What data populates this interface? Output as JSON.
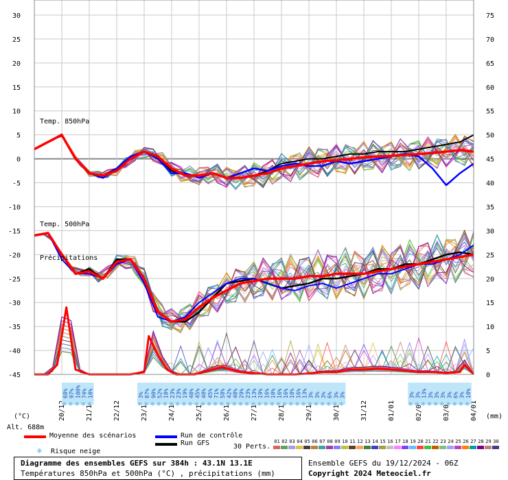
{
  "chart_data": {
    "type": "line",
    "title": "Diagramme des ensembles GEFS sur 384h : 43.1N 13.1E",
    "subtitle": "Températures 850hPa et 500hPa (°C) , précipitations (mm)",
    "run_info": "Ensemble GEFS du 19/12/2024 - 06Z",
    "copyright": "Copyright 2024 Meteociel.fr",
    "altitude": "Alt. 688m",
    "left_unit": "(°C)",
    "right_unit": "(mm)",
    "left_ticks": [
      30,
      25,
      20,
      15,
      10,
      5,
      0,
      -5,
      -10,
      -15,
      -20,
      -25,
      -30,
      -35,
      -40,
      -45
    ],
    "right_ticks": [
      75,
      70,
      65,
      60,
      55,
      50,
      45,
      40,
      35,
      30,
      25,
      20,
      15,
      10,
      5,
      0
    ],
    "ylim_temp": [
      -45,
      30
    ],
    "ylim_precip": [
      0,
      75
    ],
    "x_dates": [
      "20/12",
      "21/12",
      "22/12",
      "23/12",
      "24/12",
      "25/12",
      "26/12",
      "27/12",
      "28/12",
      "29/12",
      "30/12",
      "31/12",
      "01/01",
      "02/01",
      "03/01",
      "04/01"
    ],
    "panel_labels": {
      "t850": "Temp. 850hPa",
      "t500": "Temp. 500hPa",
      "precip": "Précipitations"
    },
    "snow_risk": [
      "68%",
      "97%",
      "100%",
      "74%",
      "10%",
      "",
      "",
      "",
      "",
      "",
      "",
      "",
      "3%",
      "87%",
      "90%",
      "52%",
      "10%",
      "23%",
      "23%",
      "19%",
      "48%",
      "45%",
      "48%",
      "45%",
      "71%",
      "58%",
      "42%",
      "48%",
      "29%",
      "23%",
      "13%",
      "19%",
      "16%",
      "10%",
      "16%",
      "16%",
      "10%",
      "16%",
      "13%",
      "3%",
      "3%",
      "3%",
      "6%",
      "3%",
      "3%",
      "",
      "",
      "",
      "",
      "",
      "",
      "",
      "",
      "",
      "",
      "3%",
      "3%",
      "13%",
      "3%",
      "3%",
      "3%",
      "3%",
      "6%",
      "3%",
      "10%"
    ],
    "t850_mean": [
      [
        0,
        2
      ],
      [
        3,
        3.5
      ],
      [
        6,
        5
      ],
      [
        9,
        0
      ],
      [
        12,
        -3
      ],
      [
        15,
        -3.5
      ],
      [
        18,
        -2.5
      ],
      [
        21,
        0
      ],
      [
        24,
        1.5
      ],
      [
        27,
        0.5
      ],
      [
        30,
        -2
      ],
      [
        33,
        -3.5
      ],
      [
        36,
        -3.5
      ],
      [
        39,
        -3
      ],
      [
        42,
        -4
      ],
      [
        45,
        -4
      ],
      [
        48,
        -3.5
      ],
      [
        51,
        -3
      ],
      [
        54,
        -2
      ],
      [
        57,
        -1.5
      ],
      [
        60,
        -1
      ],
      [
        63,
        -0.5
      ],
      [
        66,
        -0.3
      ],
      [
        69,
        0
      ],
      [
        72,
        0.3
      ],
      [
        75,
        0.5
      ],
      [
        78,
        0.6
      ],
      [
        81,
        0.8
      ],
      [
        84,
        1
      ],
      [
        87,
        1.2
      ],
      [
        90,
        1.5
      ],
      [
        93,
        1.8
      ],
      [
        96,
        1.5
      ]
    ],
    "t850_control": [
      [
        0,
        2
      ],
      [
        3,
        3.5
      ],
      [
        6,
        5
      ],
      [
        9,
        0
      ],
      [
        12,
        -3
      ],
      [
        15,
        -4
      ],
      [
        18,
        -2
      ],
      [
        21,
        0.5
      ],
      [
        24,
        1.5
      ],
      [
        27,
        0
      ],
      [
        30,
        -3
      ],
      [
        33,
        -3
      ],
      [
        36,
        -4
      ],
      [
        39,
        -3
      ],
      [
        42,
        -4
      ],
      [
        45,
        -3
      ],
      [
        48,
        -2
      ],
      [
        51,
        -2.5
      ],
      [
        54,
        -1.5
      ],
      [
        57,
        -1
      ],
      [
        60,
        -1.5
      ],
      [
        63,
        -1.5
      ],
      [
        66,
        -0.5
      ],
      [
        69,
        -1
      ],
      [
        72,
        -0.5
      ],
      [
        75,
        0
      ],
      [
        78,
        0.5
      ],
      [
        81,
        1
      ],
      [
        84,
        0.5
      ],
      [
        87,
        -2
      ],
      [
        90,
        -5.5
      ],
      [
        93,
        -3
      ],
      [
        96,
        -1
      ]
    ],
    "t850_gfs": [
      [
        0,
        2
      ],
      [
        3,
        3.5
      ],
      [
        6,
        5
      ],
      [
        9,
        0
      ],
      [
        12,
        -3
      ],
      [
        15,
        -3.5
      ],
      [
        18,
        -2
      ],
      [
        21,
        0
      ],
      [
        24,
        1.5
      ],
      [
        27,
        0.5
      ],
      [
        30,
        -2.5
      ],
      [
        33,
        -3.5
      ],
      [
        36,
        -3.5
      ],
      [
        39,
        -3
      ],
      [
        42,
        -4
      ],
      [
        45,
        -4
      ],
      [
        48,
        -3.5
      ],
      [
        51,
        -2.5
      ],
      [
        54,
        -1
      ],
      [
        57,
        -0.5
      ],
      [
        60,
        0
      ],
      [
        63,
        0
      ],
      [
        66,
        0.5
      ],
      [
        69,
        1
      ],
      [
        72,
        1
      ],
      [
        75,
        1.5
      ],
      [
        78,
        1.5
      ],
      [
        81,
        1.5
      ],
      [
        84,
        2
      ],
      [
        87,
        2.5
      ],
      [
        90,
        3
      ],
      [
        93,
        3.5
      ],
      [
        96,
        5
      ]
    ],
    "t500_mean": [
      [
        0,
        -16
      ],
      [
        3,
        -15.5
      ],
      [
        6,
        -20
      ],
      [
        9,
        -24
      ],
      [
        12,
        -23.5
      ],
      [
        15,
        -25
      ],
      [
        18,
        -21.5
      ],
      [
        21,
        -21
      ],
      [
        24,
        -25
      ],
      [
        27,
        -32
      ],
      [
        30,
        -34
      ],
      [
        33,
        -33.5
      ],
      [
        36,
        -31
      ],
      [
        39,
        -29
      ],
      [
        42,
        -27.5
      ],
      [
        45,
        -26
      ],
      [
        48,
        -25.5
      ],
      [
        51,
        -25
      ],
      [
        54,
        -25
      ],
      [
        57,
        -25
      ],
      [
        60,
        -24.5
      ],
      [
        63,
        -24.5
      ],
      [
        66,
        -24
      ],
      [
        69,
        -24
      ],
      [
        72,
        -24
      ],
      [
        75,
        -23.5
      ],
      [
        78,
        -23
      ],
      [
        81,
        -22.5
      ],
      [
        84,
        -22
      ],
      [
        87,
        -21.5
      ],
      [
        90,
        -21
      ],
      [
        93,
        -20.5
      ],
      [
        96,
        -20
      ]
    ],
    "t500_control": [
      [
        0,
        -16
      ],
      [
        3,
        -15.5
      ],
      [
        6,
        -21
      ],
      [
        9,
        -24
      ],
      [
        12,
        -24
      ],
      [
        15,
        -25
      ],
      [
        18,
        -22
      ],
      [
        21,
        -21
      ],
      [
        24,
        -26
      ],
      [
        27,
        -33
      ],
      [
        30,
        -34
      ],
      [
        33,
        -33
      ],
      [
        36,
        -30
      ],
      [
        39,
        -28
      ],
      [
        42,
        -26
      ],
      [
        45,
        -25
      ],
      [
        48,
        -25
      ],
      [
        51,
        -26
      ],
      [
        54,
        -27
      ],
      [
        57,
        -27.5
      ],
      [
        60,
        -26.5
      ],
      [
        63,
        -26
      ],
      [
        66,
        -27
      ],
      [
        69,
        -26
      ],
      [
        72,
        -25
      ],
      [
        75,
        -24
      ],
      [
        78,
        -24
      ],
      [
        81,
        -23
      ],
      [
        84,
        -22
      ],
      [
        87,
        -22
      ],
      [
        90,
        -21
      ],
      [
        93,
        -20
      ],
      [
        96,
        -18
      ]
    ],
    "t500_gfs": [
      [
        0,
        -16
      ],
      [
        3,
        -15.5
      ],
      [
        6,
        -20
      ],
      [
        9,
        -24
      ],
      [
        12,
        -23
      ],
      [
        15,
        -25
      ],
      [
        18,
        -21
      ],
      [
        21,
        -21
      ],
      [
        24,
        -25
      ],
      [
        27,
        -32
      ],
      [
        30,
        -34
      ],
      [
        33,
        -34
      ],
      [
        36,
        -32
      ],
      [
        39,
        -29
      ],
      [
        42,
        -26
      ],
      [
        45,
        -25.5
      ],
      [
        48,
        -25
      ],
      [
        51,
        -26
      ],
      [
        54,
        -27
      ],
      [
        57,
        -26.5
      ],
      [
        60,
        -26
      ],
      [
        63,
        -25
      ],
      [
        66,
        -25
      ],
      [
        69,
        -24.5
      ],
      [
        72,
        -24
      ],
      [
        75,
        -23
      ],
      [
        78,
        -23
      ],
      [
        81,
        -22
      ],
      [
        84,
        -22
      ],
      [
        87,
        -21
      ],
      [
        90,
        -20
      ],
      [
        93,
        -19.5
      ],
      [
        96,
        -20
      ]
    ],
    "precip_mean": [
      [
        0,
        0
      ],
      [
        3,
        0
      ],
      [
        5,
        2
      ],
      [
        7,
        14
      ],
      [
        9,
        1
      ],
      [
        12,
        0
      ],
      [
        15,
        0
      ],
      [
        18,
        0
      ],
      [
        21,
        0
      ],
      [
        24,
        0.5
      ],
      [
        25,
        8
      ],
      [
        27,
        4
      ],
      [
        29,
        1
      ],
      [
        31,
        0
      ],
      [
        33,
        0
      ],
      [
        35,
        0
      ],
      [
        37,
        0.5
      ],
      [
        39,
        1
      ],
      [
        41,
        1.5
      ],
      [
        43,
        1
      ],
      [
        45,
        0.5
      ],
      [
        47,
        0.3
      ],
      [
        49,
        0.2
      ],
      [
        51,
        0
      ],
      [
        54,
        0
      ],
      [
        57,
        0
      ],
      [
        60,
        0.2
      ],
      [
        63,
        0.5
      ],
      [
        66,
        0.5
      ],
      [
        69,
        1
      ],
      [
        72,
        1
      ],
      [
        75,
        1.2
      ],
      [
        78,
        1
      ],
      [
        81,
        0.8
      ],
      [
        84,
        0.5
      ],
      [
        87,
        0.5
      ],
      [
        90,
        0.3
      ],
      [
        93,
        0.5
      ],
      [
        94,
        2
      ],
      [
        96,
        0
      ]
    ],
    "legend": {
      "mean": "Moyenne des scénarios",
      "control": "Run de contrôle",
      "gfs": "Run GFS",
      "snow": "Risque neige",
      "perts": "30 Perts."
    },
    "member_ids": [
      "01",
      "02",
      "03",
      "04",
      "05",
      "06",
      "07",
      "08",
      "09",
      "10",
      "11",
      "12",
      "13",
      "14",
      "15",
      "16",
      "17",
      "18",
      "19",
      "20",
      "21",
      "22",
      "23",
      "24",
      "25",
      "26",
      "27",
      "28",
      "29",
      "30"
    ],
    "member_colors": [
      "#e06060",
      "#60a060",
      "#a0a0e0",
      "#e0c040",
      "#404040",
      "#c08040",
      "#40a0a0",
      "#a040a0",
      "#8080ff",
      "#c0c040",
      "#604020",
      "#ffa060",
      "#408040",
      "#4040c0",
      "#a0a040",
      "#c0c0c0",
      "#ff80ff",
      "#8040ff",
      "#60c0ff",
      "#ff4040",
      "#40c040",
      "#c06000",
      "#80c080",
      "#a0a0ff",
      "#c040c0",
      "#ff8000",
      "#00a0a0",
      "#800080",
      "#c08080",
      "#404080"
    ],
    "colors": {
      "mean": "#ff0000",
      "control": "#0000ff",
      "gfs": "#000000",
      "zero_line": "#888888"
    }
  }
}
